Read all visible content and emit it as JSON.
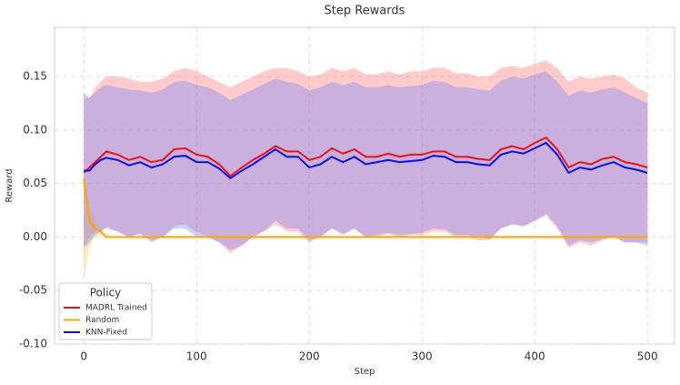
{
  "chart_data": {
    "type": "line",
    "title": "Step Rewards",
    "x_label": "Step",
    "y_label": "Reward",
    "legend_title": "Policy",
    "legend": "lower left",
    "grid": true,
    "xlim": [
      -26,
      524
    ],
    "xticks": [
      0,
      100,
      200,
      300,
      400,
      500
    ],
    "ylim": [
      -0.1,
      0.196
    ],
    "yticks": [
      {
        "value": -0.1,
        "label": "-0.10"
      },
      {
        "value": -0.05,
        "label": "-0.05"
      },
      {
        "value": 0,
        "label": "0.00"
      },
      0.05,
      {
        "value": 0.1,
        "label": "0.10"
      },
      0.15
    ],
    "x": [
      0,
      5,
      10,
      15,
      20,
      30,
      40,
      50,
      60,
      70,
      80,
      90,
      100,
      110,
      120,
      130,
      140,
      150,
      160,
      170,
      180,
      190,
      200,
      210,
      220,
      230,
      240,
      250,
      260,
      270,
      280,
      290,
      300,
      310,
      320,
      330,
      340,
      350,
      360,
      370,
      380,
      390,
      400,
      410,
      420,
      430,
      440,
      450,
      460,
      470,
      480,
      490,
      500
    ],
    "series": [
      {
        "name": "MADRL Trained",
        "color": "#e8141c",
        "band_color": "#ff6b6b",
        "values": [
          0.06,
          0.065,
          0.07,
          0.075,
          0.08,
          0.077,
          0.072,
          0.075,
          0.07,
          0.072,
          0.082,
          0.083,
          0.077,
          0.075,
          0.068,
          0.057,
          0.065,
          0.072,
          0.078,
          0.085,
          0.08,
          0.08,
          0.072,
          0.075,
          0.083,
          0.078,
          0.082,
          0.075,
          0.075,
          0.078,
          0.075,
          0.077,
          0.077,
          0.08,
          0.08,
          0.075,
          0.075,
          0.073,
          0.072,
          0.082,
          0.085,
          0.082,
          0.088,
          0.093,
          0.082,
          0.065,
          0.07,
          0.068,
          0.073,
          0.075,
          0.07,
          0.068,
          0.065
        ],
        "upper": [
          0.13,
          0.13,
          0.14,
          0.145,
          0.15,
          0.15,
          0.148,
          0.145,
          0.145,
          0.148,
          0.155,
          0.158,
          0.155,
          0.15,
          0.145,
          0.14,
          0.145,
          0.15,
          0.155,
          0.158,
          0.158,
          0.155,
          0.15,
          0.152,
          0.158,
          0.155,
          0.158,
          0.152,
          0.152,
          0.155,
          0.152,
          0.155,
          0.155,
          0.158,
          0.158,
          0.153,
          0.153,
          0.15,
          0.15,
          0.158,
          0.16,
          0.158,
          0.162,
          0.165,
          0.158,
          0.145,
          0.15,
          0.148,
          0.15,
          0.152,
          0.148,
          0.14,
          0.135
        ],
        "lower": [
          -0.01,
          0.0,
          0.005,
          0.005,
          0.01,
          0.005,
          0.0,
          0.003,
          -0.003,
          0.0,
          0.01,
          0.012,
          0.005,
          0.0,
          -0.005,
          -0.015,
          -0.008,
          0.0,
          0.005,
          0.012,
          0.005,
          0.005,
          -0.005,
          0.0,
          0.008,
          0.003,
          0.008,
          0.0,
          0.0,
          0.003,
          0.0,
          0.002,
          0.002,
          0.005,
          0.005,
          0.0,
          0.0,
          -0.003,
          -0.003,
          0.008,
          0.012,
          0.01,
          0.015,
          0.02,
          0.008,
          -0.01,
          -0.005,
          -0.008,
          -0.003,
          0.0,
          -0.005,
          -0.005,
          -0.005
        ]
      },
      {
        "name": "Random",
        "color": "#ffa500",
        "band_color": "#ffc04d",
        "values": [
          0.055,
          0.015,
          0.008,
          0.005,
          0,
          0,
          0,
          0,
          0,
          0,
          0,
          0,
          0,
          0,
          0,
          0,
          0,
          0,
          0,
          0,
          0,
          0,
          0,
          0,
          0,
          0,
          0,
          0,
          0,
          0,
          0,
          0,
          0,
          0,
          0,
          0,
          0,
          0,
          0,
          0,
          0,
          0,
          0,
          0,
          0,
          0,
          0,
          0,
          0,
          0,
          0,
          0,
          0
        ],
        "upper": [
          0.06,
          0.03,
          0.015,
          0.008,
          0.003,
          null,
          null,
          null,
          null,
          null,
          null,
          null,
          null,
          null,
          null,
          null,
          null,
          null,
          null,
          null,
          null,
          null,
          null,
          null,
          null,
          null,
          null,
          null,
          null,
          null,
          null,
          null,
          null,
          null,
          null,
          null,
          null,
          null,
          null,
          null,
          null,
          null,
          null,
          null,
          null,
          null,
          null,
          null,
          null,
          null,
          null,
          null,
          null
        ],
        "lower": [
          -0.04,
          -0.01,
          0.0,
          0.002,
          -0.003,
          null,
          null,
          null,
          null,
          null,
          null,
          null,
          null,
          null,
          null,
          null,
          null,
          null,
          null,
          null,
          null,
          null,
          null,
          null,
          null,
          null,
          null,
          null,
          null,
          null,
          null,
          null,
          null,
          null,
          null,
          null,
          null,
          null,
          null,
          null,
          null,
          null,
          null,
          null,
          null,
          null,
          null,
          null,
          null,
          null,
          null,
          null,
          null
        ]
      },
      {
        "name": "KNN-Fixed",
        "color": "#0a10e6",
        "band_color": "#6b7bff",
        "values": [
          0.062,
          0.062,
          0.068,
          0.072,
          0.074,
          0.072,
          0.067,
          0.07,
          0.065,
          0.068,
          0.075,
          0.076,
          0.07,
          0.07,
          0.064,
          0.055,
          0.062,
          0.068,
          0.075,
          0.082,
          0.075,
          0.075,
          0.065,
          0.068,
          0.075,
          0.07,
          0.075,
          0.068,
          0.07,
          0.072,
          0.07,
          0.071,
          0.072,
          0.076,
          0.075,
          0.07,
          0.07,
          0.068,
          0.067,
          0.077,
          0.08,
          0.078,
          0.083,
          0.088,
          0.077,
          0.06,
          0.065,
          0.063,
          0.067,
          0.07,
          0.065,
          0.063,
          0.06
        ],
        "upper": [
          0.135,
          0.13,
          0.135,
          0.14,
          0.142,
          0.14,
          0.138,
          0.137,
          0.135,
          0.138,
          0.145,
          0.146,
          0.142,
          0.14,
          0.135,
          0.128,
          0.133,
          0.138,
          0.143,
          0.148,
          0.145,
          0.143,
          0.137,
          0.14,
          0.145,
          0.142,
          0.145,
          0.14,
          0.14,
          0.142,
          0.14,
          0.141,
          0.142,
          0.146,
          0.145,
          0.14,
          0.14,
          0.138,
          0.137,
          0.146,
          0.15,
          0.148,
          0.152,
          0.155,
          0.145,
          0.132,
          0.137,
          0.135,
          0.138,
          0.14,
          0.135,
          0.13,
          0.125
        ],
        "lower": [
          -0.01,
          -0.005,
          0.002,
          0.005,
          0.008,
          0.005,
          0.0,
          0.003,
          -0.005,
          0.0,
          0.008,
          0.008,
          0.0,
          0.0,
          -0.005,
          -0.012,
          -0.008,
          0.0,
          0.006,
          0.015,
          0.008,
          0.008,
          -0.003,
          0.0,
          0.008,
          0.002,
          0.008,
          0.0,
          0.002,
          0.004,
          0.002,
          0.003,
          0.004,
          0.008,
          0.007,
          0.002,
          0.002,
          0.0,
          -0.002,
          0.008,
          0.012,
          0.01,
          0.015,
          0.022,
          0.01,
          -0.008,
          -0.003,
          -0.005,
          -0.002,
          0.0,
          -0.005,
          -0.005,
          -0.008
        ]
      }
    ]
  }
}
